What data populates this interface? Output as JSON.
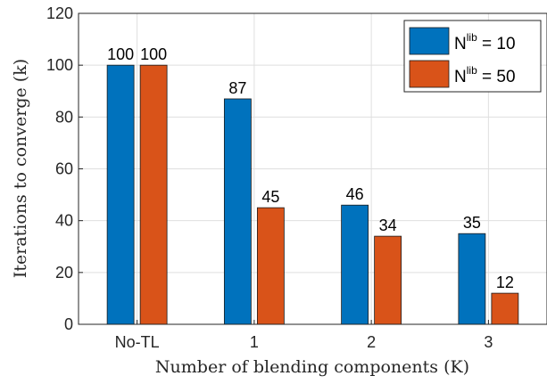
{
  "chart_data": {
    "type": "bar",
    "categories": [
      "No-TL",
      "1",
      "2",
      "3"
    ],
    "series": [
      {
        "name": "N^lib = 10",
        "legend_base": "N",
        "legend_sup": "lib",
        "legend_rest": " = 10",
        "color": "#0072BD",
        "values": [
          100,
          87,
          46,
          35
        ]
      },
      {
        "name": "N^lib = 50",
        "legend_base": "N",
        "legend_sup": "lib",
        "legend_rest": " = 50",
        "color": "#D95319",
        "values": [
          100,
          45,
          34,
          12
        ]
      }
    ],
    "xlabel": "Number of blending components (K)",
    "ylabel": "Iterations to converge (k)",
    "ylim": [
      0,
      120
    ],
    "yticks": [
      0,
      20,
      40,
      60,
      80,
      100,
      120
    ],
    "grid": true,
    "legend_position": "top-right"
  }
}
